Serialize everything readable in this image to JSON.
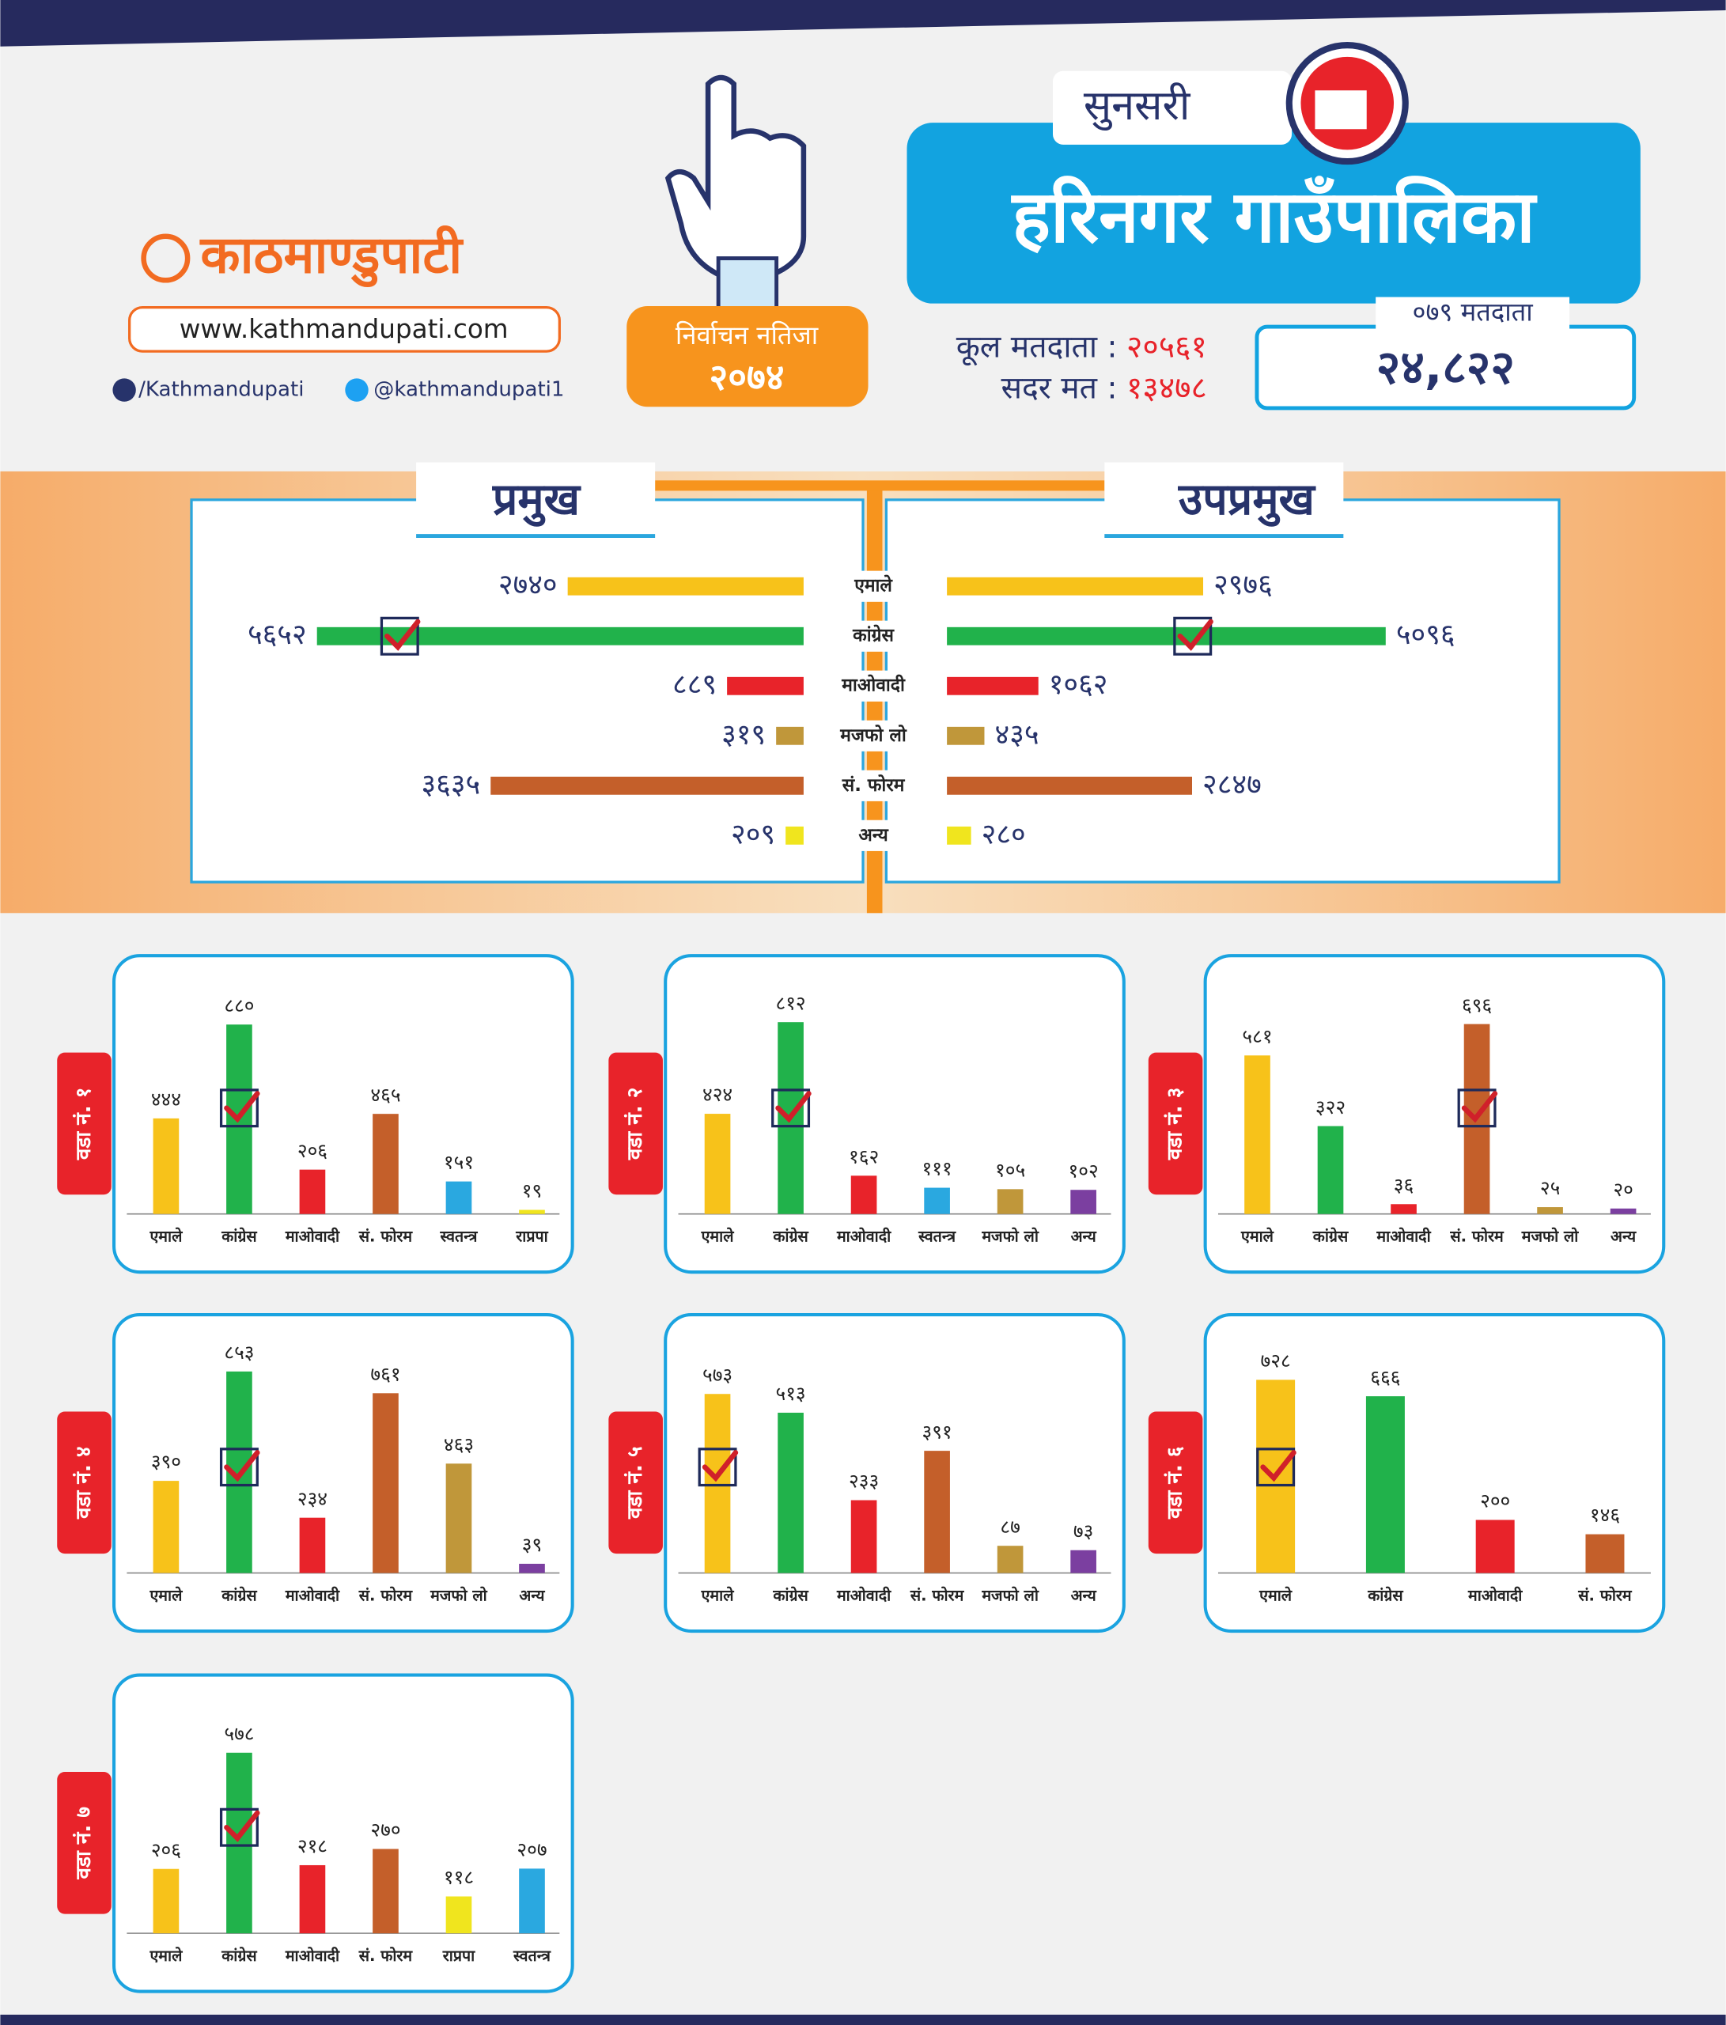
{
  "header": {
    "logo": "काठमाण्डुपाटी",
    "website": "www.kathmandupati.com",
    "facebook": "/Kathmandupati",
    "twitter": "@kathmandupati1",
    "badge_title": "निर्वाचन नतिजा",
    "badge_year": "२०७४",
    "district": "सुनसरी",
    "municipality": "हरिनगर गाउँपालिका",
    "total_voters_label": "कूल मतदाता :",
    "total_voters": "२०५६१",
    "valid_votes_label": "सदर मत :",
    "valid_votes": "१३४७८",
    "voters_079_label": "०७९ मतदाता",
    "voters_079": "२४,८२२"
  },
  "chart_data": [
    {
      "type": "butterfly",
      "categories": [
        "एमाले",
        "कांग्रेस",
        "माओवादी",
        "मजफो लो",
        "सं. फोरम",
        "अन्य"
      ],
      "colors": [
        "#f7c21a",
        "#21b24b",
        "#e8232a",
        "#c0973a",
        "#c45f2a",
        "#f0e51e"
      ],
      "xlim": [
        0,
        5700
      ],
      "series": [
        {
          "name": "प्रमुख",
          "values": [
            2740,
            5652,
            889,
            319,
            3635,
            209
          ],
          "value_labels": [
            "२७४०",
            "५६५२",
            "८८९",
            "३१९",
            "३६३५",
            "२०९"
          ],
          "winner": "कांग्रेस"
        },
        {
          "name": "उपप्रमुख",
          "values": [
            2976,
            5096,
            1062,
            435,
            2847,
            280
          ],
          "value_labels": [
            "२९७६",
            "५०९६",
            "१०६२",
            "४३५",
            "२८४७",
            "२८०"
          ],
          "winner": "कांग्रेस"
        }
      ]
    },
    {
      "type": "bar",
      "title": "वडा नं. १",
      "categories": [
        "एमाले",
        "कांग्रेस",
        "माओवादी",
        "सं. फोरम",
        "स्वतन्त्र",
        "राप्रपा"
      ],
      "values": [
        444,
        880,
        206,
        465,
        151,
        19
      ],
      "value_labels": [
        "४४४",
        "८८०",
        "२०६",
        "४६५",
        "१५१",
        "१९"
      ],
      "colors": [
        "#f7c21a",
        "#21b24b",
        "#e8232a",
        "#c45f2a",
        "#2aa8e0",
        "#f0e51e"
      ],
      "ylim": [
        0,
        900
      ],
      "winner": "कांग्रेस"
    },
    {
      "type": "bar",
      "title": "वडा नं. २",
      "categories": [
        "एमाले",
        "कांग्रेस",
        "माओवादी",
        "स्वतन्त्र",
        "मजफो लो",
        "अन्य"
      ],
      "values": [
        424,
        812,
        162,
        111,
        105,
        102
      ],
      "value_labels": [
        "४२४",
        "८१२",
        "१६२",
        "१११",
        "१०५",
        "१०२"
      ],
      "colors": [
        "#f7c21a",
        "#21b24b",
        "#e8232a",
        "#2aa8e0",
        "#c0973a",
        "#7b3fa0"
      ],
      "ylim": [
        0,
        820
      ],
      "winner": "कांग्रेस"
    },
    {
      "type": "bar",
      "title": "वडा नं. ३",
      "categories": [
        "एमाले",
        "कांग्रेस",
        "माओवादी",
        "सं. फोरम",
        "मजफो लो",
        "अन्य"
      ],
      "values": [
        581,
        322,
        36,
        696,
        25,
        20
      ],
      "value_labels": [
        "५८१",
        "३२२",
        "३६",
        "६९६",
        "२५",
        "२०"
      ],
      "colors": [
        "#f7c21a",
        "#21b24b",
        "#e8232a",
        "#c45f2a",
        "#c0973a",
        "#7b3fa0"
      ],
      "ylim": [
        0,
        710
      ],
      "winner": "सं. फोरम"
    },
    {
      "type": "bar",
      "title": "वडा नं. ४",
      "categories": [
        "एमाले",
        "कांग्रेस",
        "माओवादी",
        "सं. फोरम",
        "मजफो लो",
        "अन्य"
      ],
      "values": [
        390,
        853,
        234,
        761,
        463,
        39
      ],
      "value_labels": [
        "३९०",
        "८५३",
        "२३४",
        "७६१",
        "४६३",
        "३९"
      ],
      "colors": [
        "#f7c21a",
        "#21b24b",
        "#e8232a",
        "#c45f2a",
        "#c0973a",
        "#7b3fa0"
      ],
      "ylim": [
        0,
        820
      ],
      "winner": "कांग्रेस"
    },
    {
      "type": "bar",
      "title": "वडा नं. ५",
      "categories": [
        "एमाले",
        "कांग्रेस",
        "माओवादी",
        "सं. फोरम",
        "मजफो लो",
        "अन्य"
      ],
      "values": [
        573,
        513,
        233,
        391,
        87,
        73
      ],
      "value_labels": [
        "५७३",
        "५१३",
        "२३३",
        "३९१",
        "८७",
        "७३"
      ],
      "colors": [
        "#f7c21a",
        "#21b24b",
        "#e8232a",
        "#c45f2a",
        "#c0973a",
        "#7b3fa0"
      ],
      "ylim": [
        0,
        620
      ],
      "winner": "एमाले"
    },
    {
      "type": "bar",
      "title": "वडा नं. ६",
      "categories": [
        "एमाले",
        "कांग्रेस",
        "माओवादी",
        "सं. फोरम"
      ],
      "values": [
        728,
        666,
        200,
        146
      ],
      "value_labels": [
        "७२८",
        "६६६",
        "२००",
        "१४६"
      ],
      "colors": [
        "#f7c21a",
        "#21b24b",
        "#e8232a",
        "#c45f2a"
      ],
      "ylim": [
        0,
        730
      ],
      "winner": "एमाले"
    },
    {
      "type": "bar",
      "title": "वडा नं. ७",
      "categories": [
        "एमाले",
        "कांग्रेस",
        "माओवादी",
        "सं. फोरम",
        "राप्रपा",
        "स्वतन्त्र"
      ],
      "values": [
        206,
        578,
        218,
        270,
        118,
        207
      ],
      "value_labels": [
        "२०६",
        "५७८",
        "२१८",
        "२७०",
        "११८",
        "२०७"
      ],
      "colors": [
        "#f7c21a",
        "#21b24b",
        "#e8232a",
        "#c45f2a",
        "#f0e51e",
        "#2aa8e0"
      ],
      "ylim": [
        0,
        620
      ],
      "winner": "कांग्रेस"
    }
  ]
}
